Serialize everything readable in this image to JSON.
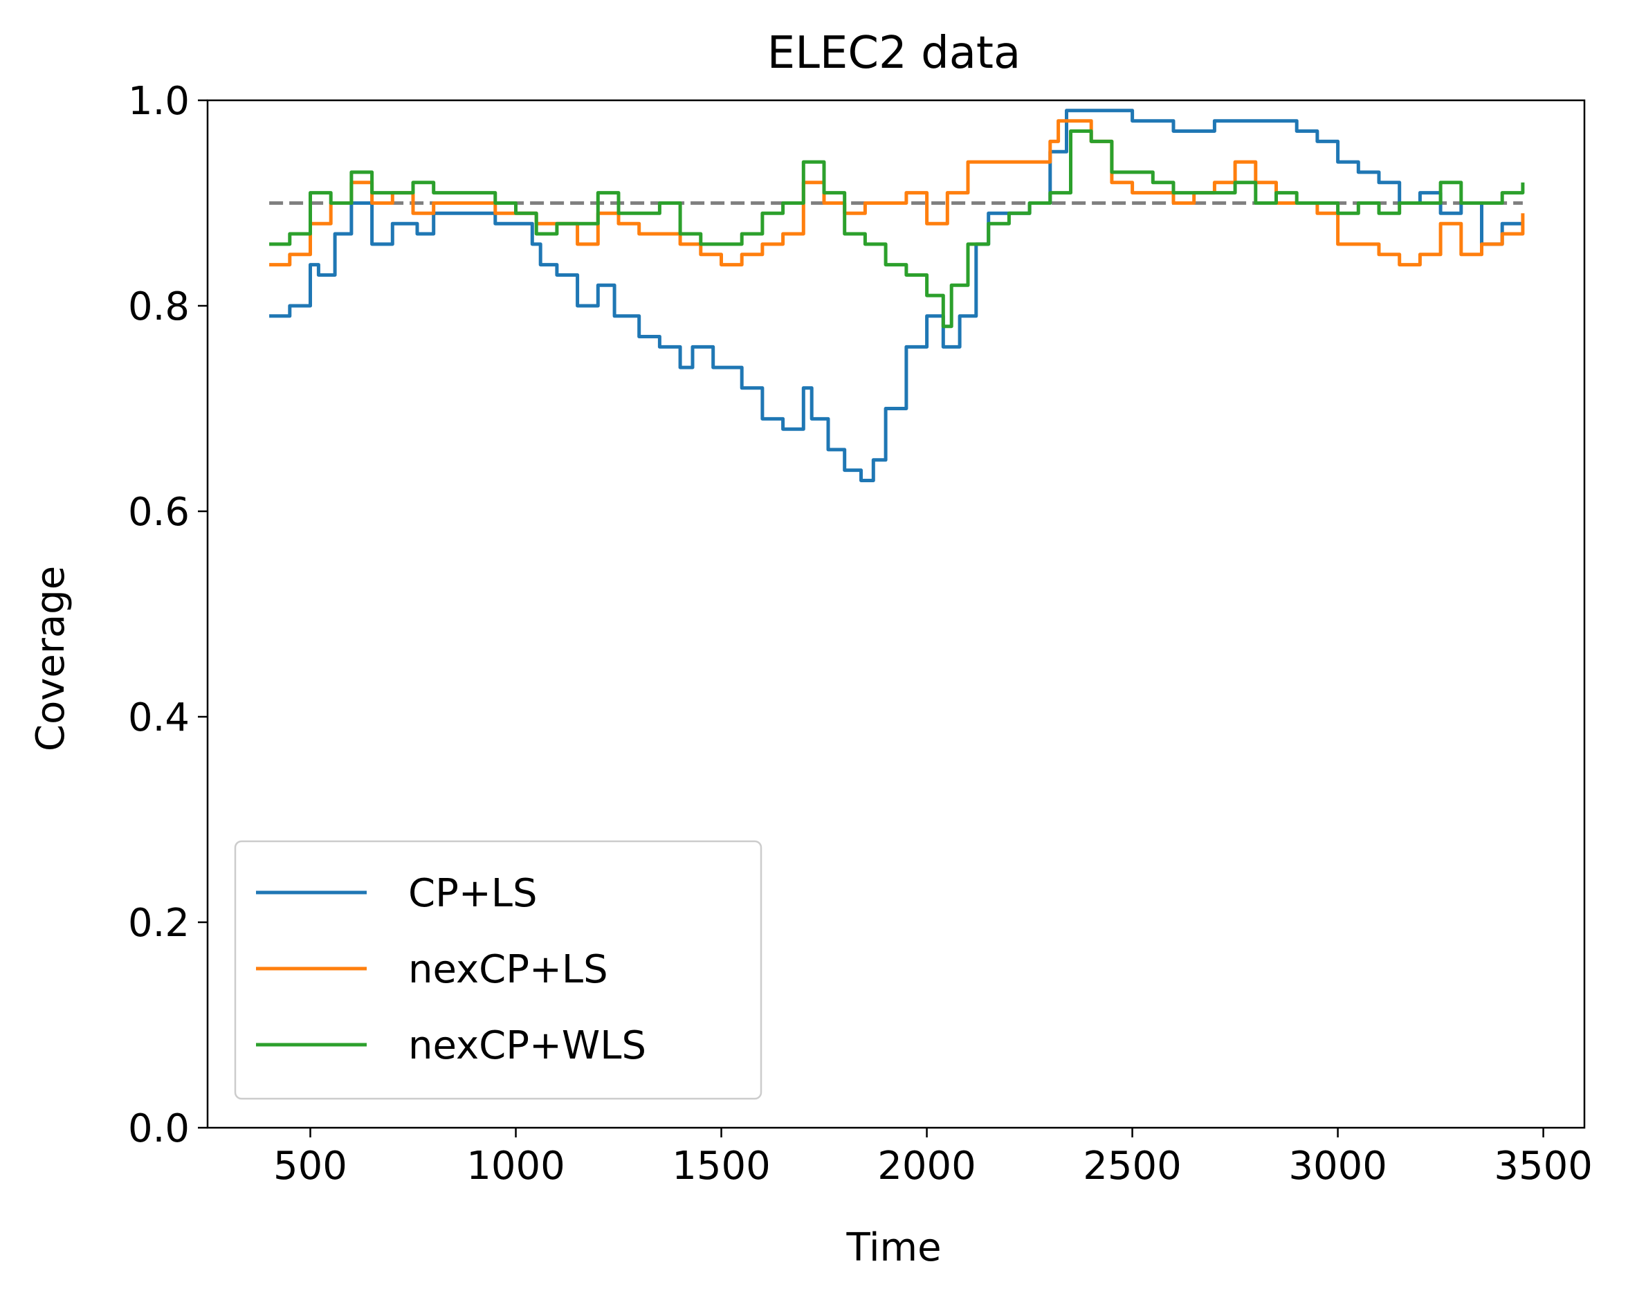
{
  "chart_data": {
    "type": "line",
    "title": "ELEC2 data",
    "xlabel": "Time",
    "ylabel": "Coverage",
    "xlim": [
      250,
      3600
    ],
    "ylim": [
      0.0,
      1.0
    ],
    "xticks": [
      500,
      1000,
      1500,
      2000,
      2500,
      3000,
      3500
    ],
    "yticks": [
      0.0,
      0.2,
      0.4,
      0.6,
      0.8,
      1.0
    ],
    "xtick_labels": [
      "500",
      "1000",
      "1500",
      "2000",
      "2500",
      "3000",
      "3500"
    ],
    "ytick_labels": [
      "0.0",
      "0.2",
      "0.4",
      "0.6",
      "0.8",
      "1.0"
    ],
    "grid": false,
    "legend_position": "lower-left",
    "reference_line": {
      "y": 0.9,
      "x_range": [
        400,
        3450
      ],
      "style": "dashed",
      "color": "#808080"
    },
    "series": [
      {
        "name": "CP+LS",
        "color": "#1f77b4",
        "points": [
          [
            400,
            0.79
          ],
          [
            450,
            0.8
          ],
          [
            500,
            0.84
          ],
          [
            520,
            0.83
          ],
          [
            560,
            0.87
          ],
          [
            600,
            0.9
          ],
          [
            650,
            0.86
          ],
          [
            700,
            0.88
          ],
          [
            760,
            0.87
          ],
          [
            800,
            0.89
          ],
          [
            900,
            0.89
          ],
          [
            950,
            0.88
          ],
          [
            1000,
            0.88
          ],
          [
            1040,
            0.86
          ],
          [
            1060,
            0.84
          ],
          [
            1100,
            0.83
          ],
          [
            1150,
            0.8
          ],
          [
            1200,
            0.82
          ],
          [
            1240,
            0.79
          ],
          [
            1300,
            0.77
          ],
          [
            1350,
            0.76
          ],
          [
            1400,
            0.74
          ],
          [
            1430,
            0.76
          ],
          [
            1480,
            0.74
          ],
          [
            1500,
            0.74
          ],
          [
            1550,
            0.72
          ],
          [
            1600,
            0.69
          ],
          [
            1650,
            0.68
          ],
          [
            1700,
            0.72
          ],
          [
            1720,
            0.69
          ],
          [
            1760,
            0.66
          ],
          [
            1800,
            0.64
          ],
          [
            1840,
            0.63
          ],
          [
            1870,
            0.65
          ],
          [
            1900,
            0.7
          ],
          [
            1950,
            0.76
          ],
          [
            2000,
            0.79
          ],
          [
            2040,
            0.76
          ],
          [
            2080,
            0.79
          ],
          [
            2120,
            0.86
          ],
          [
            2150,
            0.89
          ],
          [
            2200,
            0.89
          ],
          [
            2250,
            0.9
          ],
          [
            2300,
            0.95
          ],
          [
            2340,
            0.99
          ],
          [
            2400,
            0.99
          ],
          [
            2500,
            0.98
          ],
          [
            2600,
            0.97
          ],
          [
            2700,
            0.98
          ],
          [
            2800,
            0.98
          ],
          [
            2900,
            0.97
          ],
          [
            2950,
            0.96
          ],
          [
            3000,
            0.94
          ],
          [
            3050,
            0.93
          ],
          [
            3100,
            0.92
          ],
          [
            3150,
            0.9
          ],
          [
            3200,
            0.91
          ],
          [
            3250,
            0.89
          ],
          [
            3300,
            0.9
          ],
          [
            3350,
            0.86
          ],
          [
            3400,
            0.88
          ],
          [
            3450,
            0.88
          ]
        ]
      },
      {
        "name": "nexCP+LS",
        "color": "#ff7f0e",
        "points": [
          [
            400,
            0.84
          ],
          [
            450,
            0.85
          ],
          [
            500,
            0.88
          ],
          [
            550,
            0.9
          ],
          [
            600,
            0.92
          ],
          [
            650,
            0.9
          ],
          [
            700,
            0.91
          ],
          [
            750,
            0.89
          ],
          [
            800,
            0.9
          ],
          [
            900,
            0.9
          ],
          [
            950,
            0.89
          ],
          [
            1000,
            0.89
          ],
          [
            1050,
            0.88
          ],
          [
            1100,
            0.88
          ],
          [
            1150,
            0.86
          ],
          [
            1200,
            0.89
          ],
          [
            1250,
            0.88
          ],
          [
            1300,
            0.87
          ],
          [
            1350,
            0.87
          ],
          [
            1400,
            0.86
          ],
          [
            1450,
            0.85
          ],
          [
            1500,
            0.84
          ],
          [
            1550,
            0.85
          ],
          [
            1600,
            0.86
          ],
          [
            1650,
            0.87
          ],
          [
            1700,
            0.92
          ],
          [
            1750,
            0.9
          ],
          [
            1800,
            0.89
          ],
          [
            1850,
            0.9
          ],
          [
            1900,
            0.9
          ],
          [
            1950,
            0.91
          ],
          [
            2000,
            0.88
          ],
          [
            2050,
            0.91
          ],
          [
            2100,
            0.94
          ],
          [
            2200,
            0.94
          ],
          [
            2300,
            0.96
          ],
          [
            2320,
            0.98
          ],
          [
            2400,
            0.96
          ],
          [
            2450,
            0.92
          ],
          [
            2500,
            0.91
          ],
          [
            2550,
            0.91
          ],
          [
            2600,
            0.9
          ],
          [
            2650,
            0.91
          ],
          [
            2700,
            0.92
          ],
          [
            2750,
            0.94
          ],
          [
            2800,
            0.92
          ],
          [
            2850,
            0.9
          ],
          [
            2900,
            0.9
          ],
          [
            2950,
            0.89
          ],
          [
            3000,
            0.86
          ],
          [
            3050,
            0.86
          ],
          [
            3100,
            0.85
          ],
          [
            3150,
            0.84
          ],
          [
            3200,
            0.85
          ],
          [
            3250,
            0.88
          ],
          [
            3300,
            0.85
          ],
          [
            3350,
            0.86
          ],
          [
            3400,
            0.87
          ],
          [
            3450,
            0.89
          ]
        ]
      },
      {
        "name": "nexCP+WLS",
        "color": "#2ca02c",
        "points": [
          [
            400,
            0.86
          ],
          [
            450,
            0.87
          ],
          [
            500,
            0.91
          ],
          [
            550,
            0.9
          ],
          [
            600,
            0.93
          ],
          [
            650,
            0.91
          ],
          [
            700,
            0.91
          ],
          [
            750,
            0.92
          ],
          [
            800,
            0.91
          ],
          [
            900,
            0.91
          ],
          [
            950,
            0.9
          ],
          [
            1000,
            0.89
          ],
          [
            1050,
            0.87
          ],
          [
            1100,
            0.88
          ],
          [
            1150,
            0.88
          ],
          [
            1200,
            0.91
          ],
          [
            1250,
            0.89
          ],
          [
            1300,
            0.89
          ],
          [
            1350,
            0.9
          ],
          [
            1400,
            0.87
          ],
          [
            1450,
            0.86
          ],
          [
            1500,
            0.86
          ],
          [
            1550,
            0.87
          ],
          [
            1600,
            0.89
          ],
          [
            1650,
            0.9
          ],
          [
            1700,
            0.94
          ],
          [
            1750,
            0.91
          ],
          [
            1800,
            0.87
          ],
          [
            1850,
            0.86
          ],
          [
            1900,
            0.84
          ],
          [
            1950,
            0.83
          ],
          [
            2000,
            0.81
          ],
          [
            2040,
            0.78
          ],
          [
            2060,
            0.82
          ],
          [
            2100,
            0.86
          ],
          [
            2150,
            0.88
          ],
          [
            2200,
            0.89
          ],
          [
            2250,
            0.9
          ],
          [
            2300,
            0.91
          ],
          [
            2350,
            0.97
          ],
          [
            2400,
            0.96
          ],
          [
            2450,
            0.93
          ],
          [
            2500,
            0.93
          ],
          [
            2550,
            0.92
          ],
          [
            2600,
            0.91
          ],
          [
            2650,
            0.91
          ],
          [
            2700,
            0.91
          ],
          [
            2750,
            0.92
          ],
          [
            2800,
            0.9
          ],
          [
            2850,
            0.91
          ],
          [
            2900,
            0.9
          ],
          [
            2950,
            0.9
          ],
          [
            3000,
            0.89
          ],
          [
            3050,
            0.9
          ],
          [
            3100,
            0.89
          ],
          [
            3150,
            0.9
          ],
          [
            3200,
            0.9
          ],
          [
            3250,
            0.92
          ],
          [
            3300,
            0.9
          ],
          [
            3350,
            0.9
          ],
          [
            3400,
            0.91
          ],
          [
            3450,
            0.92
          ]
        ]
      }
    ]
  }
}
